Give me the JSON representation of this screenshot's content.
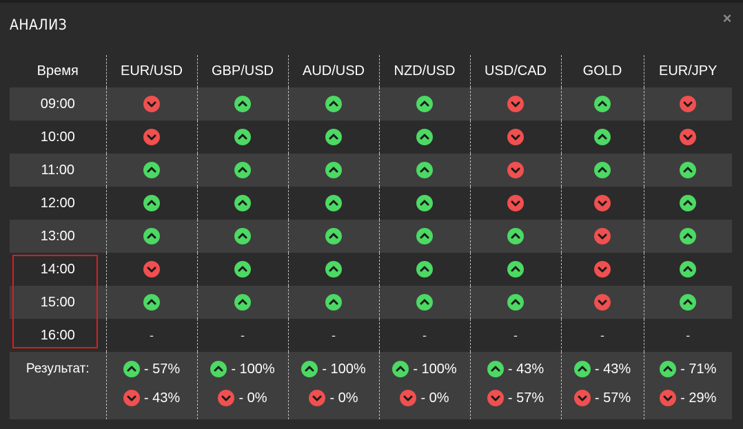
{
  "dialog": {
    "title": "АНАЛИЗ",
    "close_icon": "close-icon"
  },
  "table": {
    "time_header": "Время",
    "columns": [
      "EUR/USD",
      "GBP/USD",
      "AUD/USD",
      "NZD/USD",
      "USD/CAD",
      "GOLD",
      "EUR/JPY"
    ],
    "rows": [
      {
        "time": "09:00",
        "signals": [
          "down",
          "up",
          "up",
          "up",
          "down",
          "up",
          "down"
        ]
      },
      {
        "time": "10:00",
        "signals": [
          "down",
          "up",
          "up",
          "up",
          "down",
          "up",
          "down"
        ]
      },
      {
        "time": "11:00",
        "signals": [
          "up",
          "up",
          "up",
          "up",
          "down",
          "up",
          "up"
        ]
      },
      {
        "time": "12:00",
        "signals": [
          "up",
          "up",
          "up",
          "up",
          "down",
          "down",
          "up"
        ]
      },
      {
        "time": "13:00",
        "signals": [
          "up",
          "up",
          "up",
          "up",
          "up",
          "down",
          "up"
        ]
      },
      {
        "time": "14:00",
        "signals": [
          "down",
          "up",
          "up",
          "up",
          "up",
          "down",
          "up"
        ]
      },
      {
        "time": "15:00",
        "signals": [
          "up",
          "up",
          "up",
          "up",
          "up",
          "down",
          "up"
        ]
      },
      {
        "time": "16:00",
        "signals": [
          "-",
          "-",
          "-",
          "-",
          "-",
          "-",
          "-"
        ]
      }
    ],
    "result_label": "Результат:",
    "results": [
      {
        "up": "- 57%",
        "down": "- 43%"
      },
      {
        "up": "- 100%",
        "down": "- 0%"
      },
      {
        "up": "- 100%",
        "down": "- 0%"
      },
      {
        "up": "- 100%",
        "down": "- 0%"
      },
      {
        "up": "- 43%",
        "down": "- 57%"
      },
      {
        "up": "- 43%",
        "down": "- 57%"
      },
      {
        "up": "- 71%",
        "down": "- 29%"
      }
    ]
  },
  "colors": {
    "up": "#4cd964",
    "down": "#f0504f",
    "highlight": "#e01b1b",
    "row_light": "#3e3e3e",
    "row_dark": "#2b2b2b"
  }
}
